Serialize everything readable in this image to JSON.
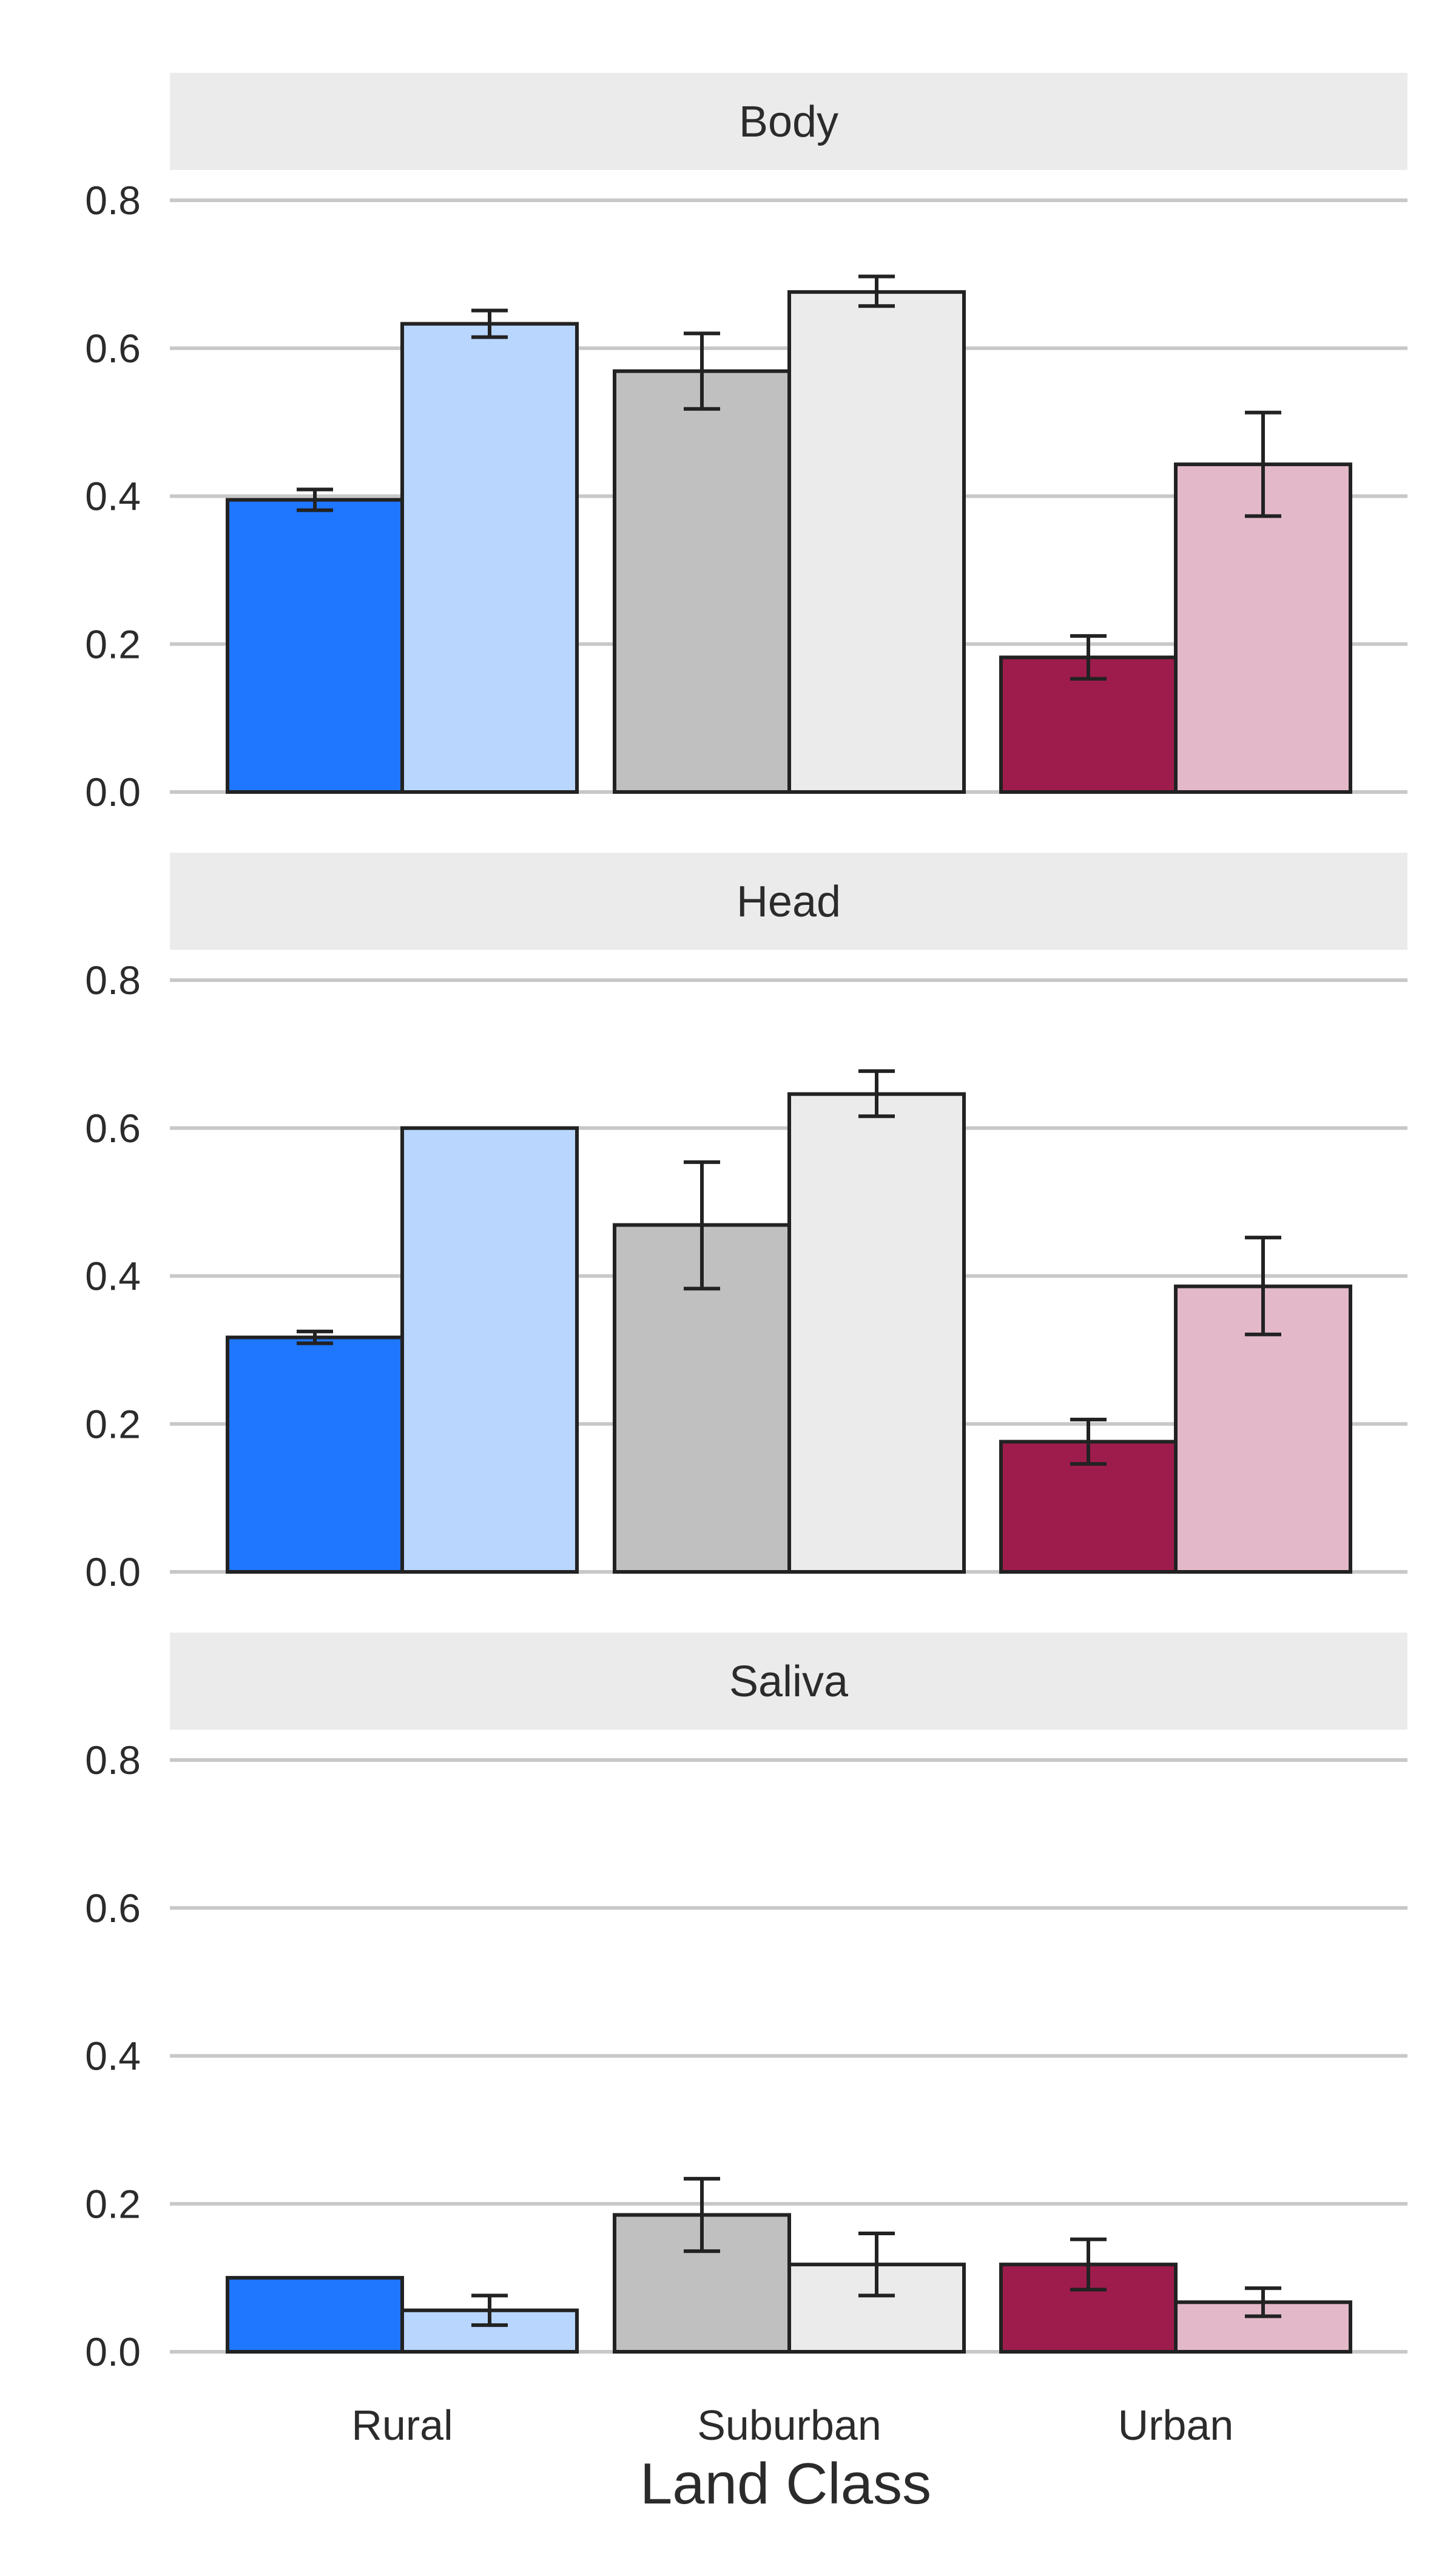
{
  "chart_data": {
    "type": "bar",
    "xlabel": "Land Class",
    "ylabel": "",
    "ylim": [
      0,
      0.8
    ],
    "yticks": [
      0.0,
      0.2,
      0.4,
      0.6,
      0.8
    ],
    "ytick_labels": [
      "0.0",
      "0.2",
      "0.4",
      "0.6",
      "0.8"
    ],
    "grid": true,
    "categories": [
      "Rural",
      "Suburban",
      "Urban"
    ],
    "colors": {
      "Rural": [
        "#1f77ff",
        "#b9d6ff"
      ],
      "Suburban": [
        "#c0c0c0",
        "#ebebeb"
      ],
      "Urban": [
        "#9e1c4c",
        "#e3b9c9"
      ]
    },
    "panels": [
      {
        "title": "Body",
        "bars": [
          {
            "category": "Rural",
            "values": [
              0.395,
              0.633
            ],
            "errors": [
              [
                0.381,
                0.409
              ],
              [
                0.615,
                0.651
              ]
            ]
          },
          {
            "category": "Suburban",
            "values": [
              0.569,
              0.676
            ],
            "errors": [
              [
                0.518,
                0.62
              ],
              [
                0.657,
                0.697
              ]
            ]
          },
          {
            "category": "Urban",
            "values": [
              0.182,
              0.443
            ],
            "errors": [
              [
                0.153,
                0.211
              ],
              [
                0.373,
                0.513
              ]
            ]
          }
        ]
      },
      {
        "title": "Head",
        "bars": [
          {
            "category": "Rural",
            "values": [
              0.317,
              0.6
            ],
            "errors": [
              [
                0.309,
                0.325
              ],
              null
            ]
          },
          {
            "category": "Suburban",
            "values": [
              0.469,
              0.646
            ],
            "errors": [
              [
                0.383,
                0.554
              ],
              [
                0.616,
                0.677
              ]
            ]
          },
          {
            "category": "Urban",
            "values": [
              0.176,
              0.386
            ],
            "errors": [
              [
                0.146,
                0.206
              ],
              [
                0.321,
                0.452
              ]
            ]
          }
        ]
      },
      {
        "title": "Saliva",
        "bars": [
          {
            "category": "Rural",
            "values": [
              0.1,
              0.056
            ],
            "errors": [
              null,
              [
                0.036,
                0.076
              ]
            ]
          },
          {
            "category": "Suburban",
            "values": [
              0.185,
              0.118
            ],
            "errors": [
              [
                0.136,
                0.234
              ],
              [
                0.076,
                0.16
              ]
            ]
          },
          {
            "category": "Urban",
            "values": [
              0.118,
              0.067
            ],
            "errors": [
              [
                0.084,
                0.152
              ],
              [
                0.048,
                0.086
              ]
            ]
          }
        ]
      }
    ]
  }
}
